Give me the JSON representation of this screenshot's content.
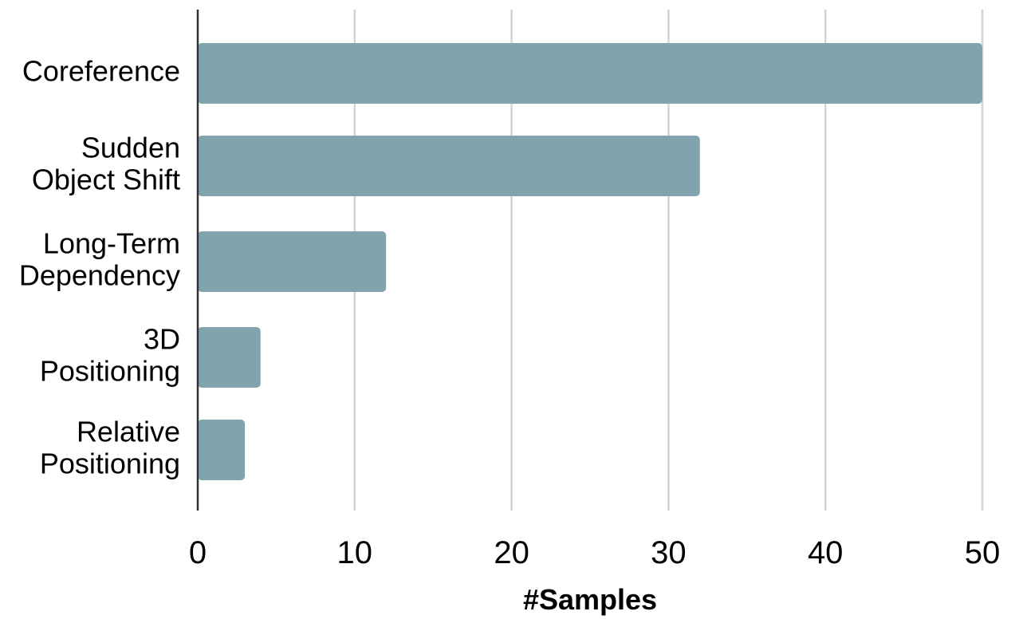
{
  "chart_data": {
    "type": "bar",
    "orientation": "horizontal",
    "categories": [
      "Coreference",
      "Sudden Object Shift",
      "Long-Term Dependency",
      "3D Positioning",
      "Relative Positioning"
    ],
    "category_label_lines": [
      [
        "Coreference"
      ],
      [
        "Sudden",
        "Object Shift"
      ],
      [
        "Long-Term",
        "Dependency"
      ],
      [
        "3D",
        "Positioning"
      ],
      [
        "Relative",
        "Positioning"
      ]
    ],
    "values": [
      50,
      32,
      12,
      4,
      3
    ],
    "xlabel": "#Samples",
    "ylabel": "",
    "xlim": [
      0,
      50
    ],
    "xticks": [
      0,
      10,
      20,
      30,
      40,
      50
    ],
    "xtick_labels": [
      "0",
      "10",
      "20",
      "30",
      "40",
      "50"
    ],
    "grid": "vertical",
    "legend": "none",
    "colors": {
      "bar": "#80a4ad",
      "grid": "#d3d3d3",
      "axis": "#333333",
      "text": "#000000"
    }
  }
}
